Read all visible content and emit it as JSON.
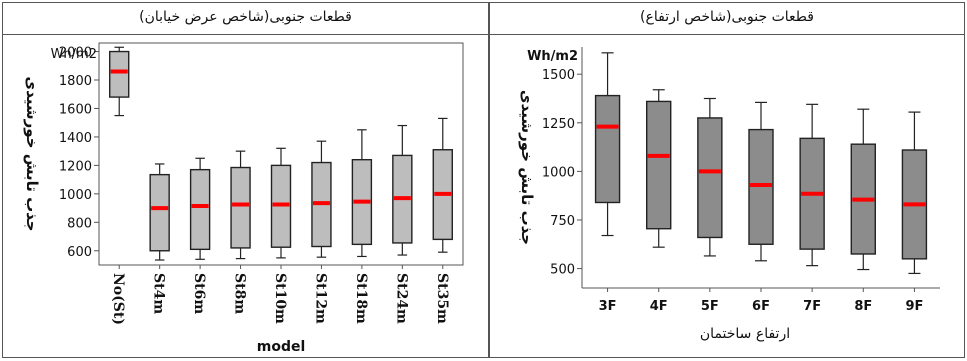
{
  "chart_data": [
    {
      "type": "boxplot",
      "title": "قطعات جنوبی(شاخص عرض خیابان)",
      "unit_label": "Wh/m2",
      "ylabel": "جذب تابش خورشیدی",
      "xlabel": "model",
      "ylim": [
        500,
        2060
      ],
      "yticks": [
        "600",
        "800",
        "1000",
        "1200",
        "1400",
        "1600",
        "1800",
        "2000"
      ],
      "categories": [
        "No(St)",
        "St4m",
        "St6m",
        "St8m",
        "St10m",
        "St12m",
        "St18m",
        "St24m",
        "St35m"
      ],
      "boxes": [
        {
          "min": 1550,
          "q1": 1680,
          "median": 1860,
          "q3": 2000,
          "max": 2030
        },
        {
          "min": 535,
          "q1": 600,
          "median": 900,
          "q3": 1135,
          "max": 1210
        },
        {
          "min": 540,
          "q1": 610,
          "median": 915,
          "q3": 1170,
          "max": 1250
        },
        {
          "min": 545,
          "q1": 620,
          "median": 925,
          "q3": 1185,
          "max": 1300
        },
        {
          "min": 550,
          "q1": 625,
          "median": 925,
          "q3": 1200,
          "max": 1320
        },
        {
          "min": 555,
          "q1": 630,
          "median": 935,
          "q3": 1220,
          "max": 1370
        },
        {
          "min": 560,
          "q1": 645,
          "median": 945,
          "q3": 1240,
          "max": 1450
        },
        {
          "min": 570,
          "q1": 655,
          "median": 970,
          "q3": 1270,
          "max": 1480
        },
        {
          "min": 590,
          "q1": 680,
          "median": 1000,
          "q3": 1310,
          "max": 1530
        }
      ],
      "colors": {
        "box_fill": "#bdbdbd",
        "median": "#ff0000",
        "outline": "#222222"
      }
    },
    {
      "type": "boxplot",
      "title": "قطعات جنوبی(شاخص ارتفاع)",
      "unit_label": "Wh/m2",
      "ylabel": "جذب تابش خورشیدی",
      "xlabel": "ارتفاع ساختمان",
      "ylim": [
        400,
        1640
      ],
      "yticks": [
        "500",
        "750",
        "1000",
        "1250",
        "1500"
      ],
      "categories": [
        "3F",
        "4F",
        "5F",
        "6F",
        "7F",
        "8F",
        "9F"
      ],
      "boxes": [
        {
          "min": 670,
          "q1": 840,
          "median": 1230,
          "q3": 1390,
          "max": 1610
        },
        {
          "min": 610,
          "q1": 705,
          "median": 1080,
          "q3": 1360,
          "max": 1420
        },
        {
          "min": 565,
          "q1": 660,
          "median": 1000,
          "q3": 1275,
          "max": 1375
        },
        {
          "min": 540,
          "q1": 625,
          "median": 930,
          "q3": 1215,
          "max": 1355
        },
        {
          "min": 515,
          "q1": 600,
          "median": 885,
          "q3": 1170,
          "max": 1345
        },
        {
          "min": 495,
          "q1": 575,
          "median": 855,
          "q3": 1140,
          "max": 1320
        },
        {
          "min": 475,
          "q1": 550,
          "median": 830,
          "q3": 1110,
          "max": 1305
        }
      ],
      "colors": {
        "box_fill": "#8c8c8c",
        "median": "#ff0000",
        "outline": "#222222"
      }
    }
  ]
}
